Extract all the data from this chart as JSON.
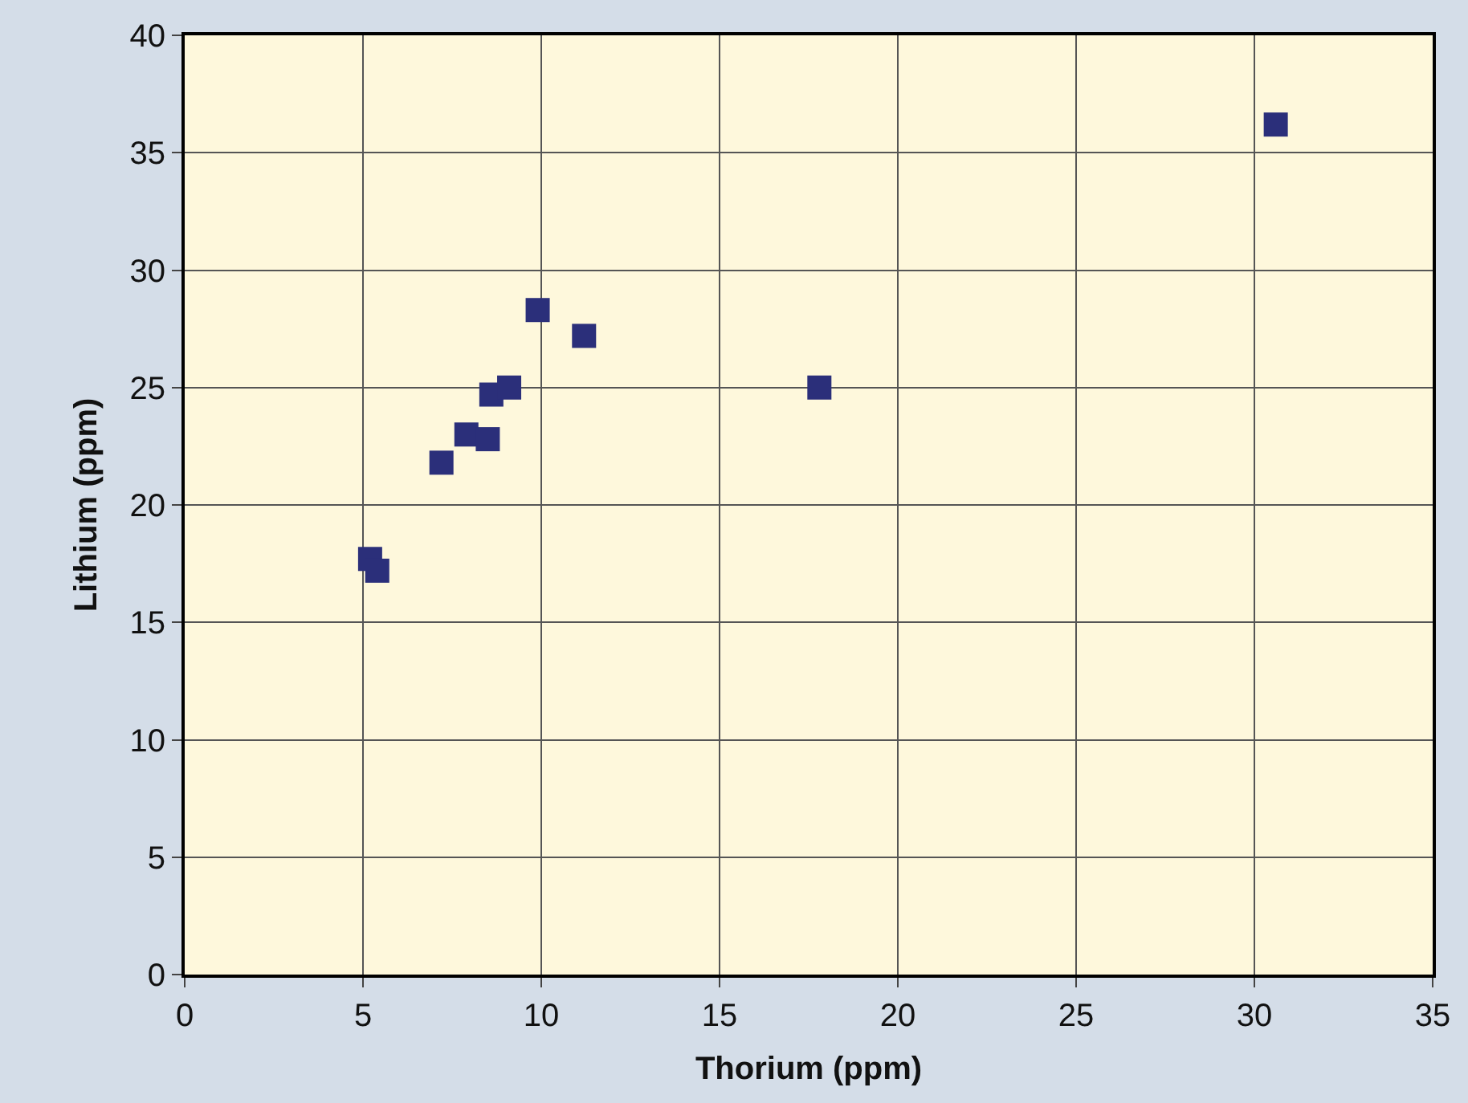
{
  "chart_data": {
    "type": "scatter",
    "xlabel": "Thorium (ppm)",
    "ylabel": "Lithium (ppm)",
    "x": [
      5.2,
      5.4,
      7.2,
      7.9,
      8.5,
      8.6,
      9.1,
      9.9,
      11.2,
      17.8,
      30.6
    ],
    "series": [
      {
        "color": "#2b2f7a",
        "values": [
          17.7,
          17.2,
          21.8,
          23.0,
          22.8,
          24.7,
          25.0,
          28.3,
          27.2,
          25.0,
          36.2
        ]
      }
    ],
    "xlim": [
      0,
      35
    ],
    "ylim": [
      0,
      40
    ],
    "xticks": [
      0,
      5,
      10,
      15,
      20,
      25,
      30,
      35
    ],
    "yticks": [
      0,
      5,
      10,
      15,
      20,
      25,
      30,
      35,
      40
    ],
    "grid": true,
    "marker": "square"
  }
}
